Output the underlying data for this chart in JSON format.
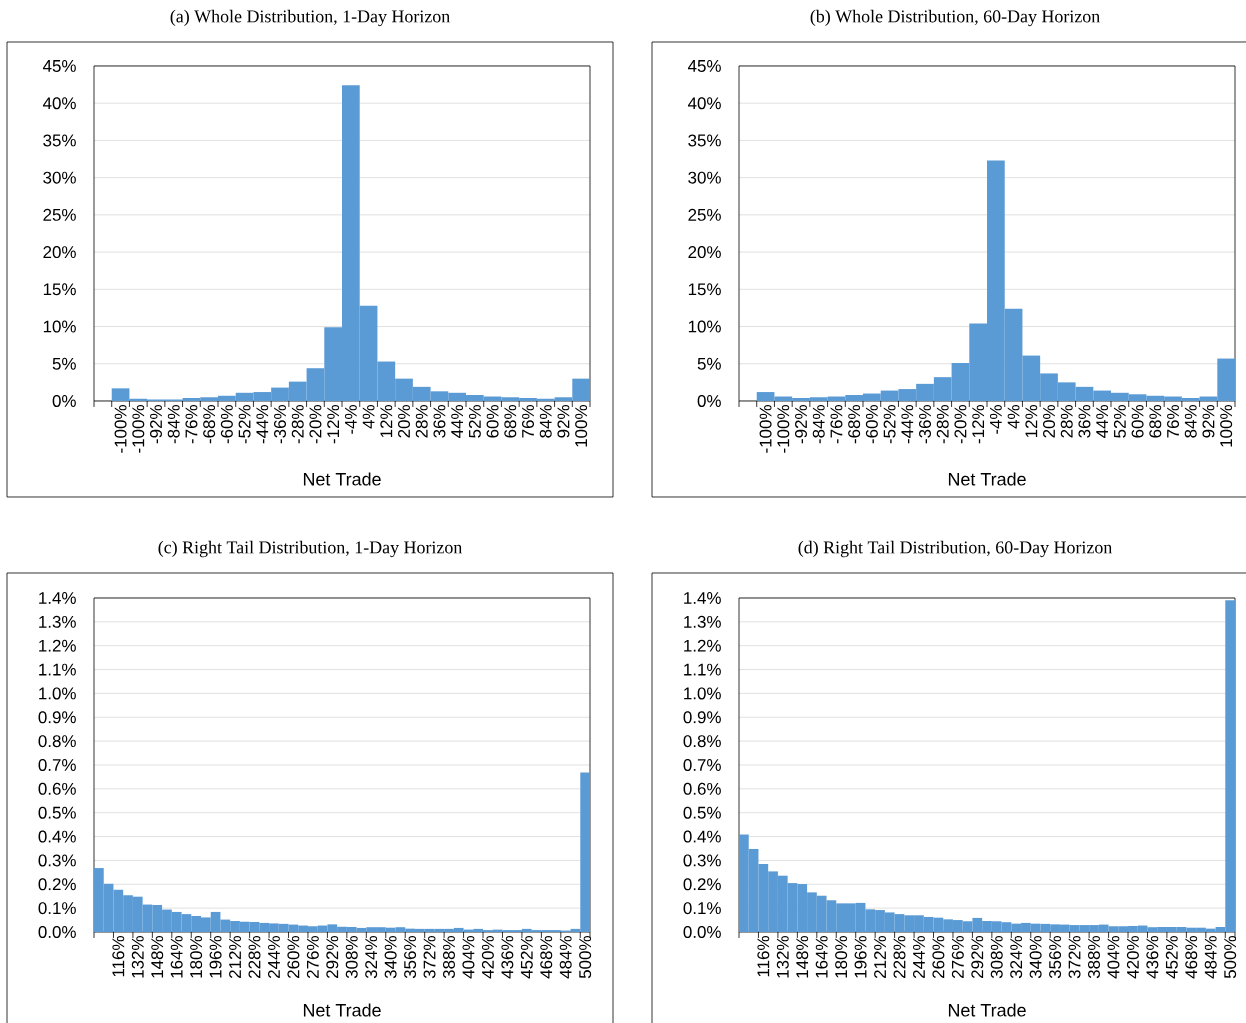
{
  "chart_data": [
    {
      "type": "bar",
      "title": "(a) Whole Distribution, 1-Day Horizon",
      "xlabel": "Net Trade",
      "color": "#5b9bd5",
      "grid": "y",
      "categories": [
        null,
        "-100%",
        "-100%",
        "-92%",
        "-84%",
        "-76%",
        "-68%",
        "-60%",
        "-52%",
        "-44%",
        "-36%",
        "-28%",
        "-20%",
        "-12%",
        "-4%",
        "4%",
        "12%",
        "20%",
        "28%",
        "36%",
        "44%",
        "52%",
        "60%",
        "68%",
        "76%",
        "84%",
        "92%",
        "100%"
      ],
      "values": [
        0,
        1.7,
        0.3,
        0.2,
        0.2,
        0.4,
        0.5,
        0.7,
        1.1,
        1.2,
        1.8,
        2.6,
        4.4,
        9.9,
        42.4,
        12.8,
        5.3,
        3.0,
        1.9,
        1.3,
        1.1,
        0.8,
        0.6,
        0.5,
        0.4,
        0.3,
        0.5,
        3.0
      ],
      "ylim": [
        0,
        45
      ],
      "yticks": [
        {
          "value": 0,
          "label": "0%"
        },
        {
          "value": 5,
          "label": "5%"
        },
        {
          "value": 10,
          "label": "10%"
        },
        {
          "value": 15,
          "label": "15%"
        },
        {
          "value": 20,
          "label": "20%"
        },
        {
          "value": 25,
          "label": "25%"
        },
        {
          "value": 30,
          "label": "30%"
        },
        {
          "value": 35,
          "label": "35%"
        },
        {
          "value": 40,
          "label": "40%"
        },
        {
          "value": 45,
          "label": "45%"
        }
      ]
    },
    {
      "type": "bar",
      "title": "(b) Whole Distribution, 60-Day Horizon",
      "xlabel": "Net Trade",
      "color": "#5b9bd5",
      "grid": "y",
      "categories": [
        null,
        "-100%",
        "-100%",
        "-92%",
        "-84%",
        "-76%",
        "-68%",
        "-60%",
        "-52%",
        "-44%",
        "-36%",
        "-28%",
        "-20%",
        "-12%",
        "-4%",
        "4%",
        "12%",
        "20%",
        "28%",
        "36%",
        "44%",
        "52%",
        "60%",
        "68%",
        "76%",
        "84%",
        "92%",
        "100%"
      ],
      "values": [
        0,
        1.2,
        0.6,
        0.4,
        0.5,
        0.6,
        0.8,
        1.0,
        1.4,
        1.6,
        2.3,
        3.2,
        5.1,
        10.4,
        32.3,
        12.4,
        6.1,
        3.7,
        2.5,
        1.9,
        1.4,
        1.1,
        0.9,
        0.7,
        0.6,
        0.4,
        0.6,
        5.7
      ],
      "ylim": [
        0,
        45
      ],
      "yticks": [
        {
          "value": 0,
          "label": "0%"
        },
        {
          "value": 5,
          "label": "5%"
        },
        {
          "value": 10,
          "label": "10%"
        },
        {
          "value": 15,
          "label": "15%"
        },
        {
          "value": 20,
          "label": "20%"
        },
        {
          "value": 25,
          "label": "25%"
        },
        {
          "value": 30,
          "label": "30%"
        },
        {
          "value": 35,
          "label": "35%"
        },
        {
          "value": 40,
          "label": "40%"
        },
        {
          "value": 45,
          "label": "45%"
        }
      ]
    },
    {
      "type": "bar",
      "title": "(c) Right Tail Distribution, 1-Day Horizon",
      "xlabel": "Net Trade",
      "color": "#5b9bd5",
      "grid": "y",
      "categories": [
        null,
        null,
        "116%",
        null,
        "132%",
        null,
        "148%",
        null,
        "164%",
        null,
        "180%",
        null,
        "196%",
        null,
        "212%",
        null,
        "228%",
        null,
        "244%",
        null,
        "260%",
        null,
        "276%",
        null,
        "292%",
        null,
        "308%",
        null,
        "324%",
        null,
        "340%",
        null,
        "356%",
        null,
        "372%",
        null,
        "388%",
        null,
        "404%",
        null,
        "420%",
        null,
        "436%",
        null,
        "452%",
        null,
        "468%",
        null,
        "484%",
        null,
        "500%"
      ],
      "values": [
        0.268,
        0.202,
        0.177,
        0.154,
        0.148,
        0.115,
        0.113,
        0.094,
        0.084,
        0.075,
        0.067,
        0.061,
        0.084,
        0.052,
        0.046,
        0.043,
        0.042,
        0.038,
        0.036,
        0.034,
        0.031,
        0.027,
        0.024,
        0.027,
        0.032,
        0.022,
        0.021,
        0.017,
        0.02,
        0.02,
        0.018,
        0.02,
        0.014,
        0.013,
        0.013,
        0.013,
        0.013,
        0.017,
        0.01,
        0.013,
        0.008,
        0.01,
        0.008,
        0.008,
        0.013,
        0.008,
        0.008,
        0.008,
        0.006,
        0.013,
        0.669
      ],
      "ylim": [
        0,
        1.4
      ],
      "yticks": [
        {
          "value": 0,
          "label": "0.0%"
        },
        {
          "value": 0.1,
          "label": "0.1%"
        },
        {
          "value": 0.2,
          "label": "0.2%"
        },
        {
          "value": 0.3,
          "label": "0.3%"
        },
        {
          "value": 0.4,
          "label": "0.4%"
        },
        {
          "value": 0.5,
          "label": "0.5%"
        },
        {
          "value": 0.6,
          "label": "0.6%"
        },
        {
          "value": 0.7,
          "label": "0.7%"
        },
        {
          "value": 0.8,
          "label": "0.8%"
        },
        {
          "value": 0.9,
          "label": "0.9%"
        },
        {
          "value": 1.0,
          "label": "1.0%"
        },
        {
          "value": 1.1,
          "label": "1.1%"
        },
        {
          "value": 1.2,
          "label": "1.2%"
        },
        {
          "value": 1.3,
          "label": "1.3%"
        },
        {
          "value": 1.4,
          "label": "1.4%"
        }
      ]
    },
    {
      "type": "bar",
      "title": "(d) Right Tail Distribution, 60-Day Horizon",
      "xlabel": "Net Trade",
      "color": "#5b9bd5",
      "grid": "y",
      "categories": [
        null,
        null,
        "116%",
        null,
        "132%",
        null,
        "148%",
        null,
        "164%",
        null,
        "180%",
        null,
        "196%",
        null,
        "212%",
        null,
        "228%",
        null,
        "244%",
        null,
        "260%",
        null,
        "276%",
        null,
        "292%",
        null,
        "308%",
        null,
        "324%",
        null,
        "340%",
        null,
        "356%",
        null,
        "372%",
        null,
        "388%",
        null,
        "404%",
        null,
        "420%",
        null,
        "436%",
        null,
        "452%",
        null,
        "468%",
        null,
        "484%",
        null,
        "500%"
      ],
      "values": [
        0.409,
        0.348,
        0.285,
        0.254,
        0.236,
        0.205,
        0.201,
        0.166,
        0.152,
        0.133,
        0.12,
        0.12,
        0.122,
        0.095,
        0.092,
        0.082,
        0.075,
        0.07,
        0.07,
        0.063,
        0.06,
        0.053,
        0.05,
        0.045,
        0.059,
        0.046,
        0.045,
        0.041,
        0.035,
        0.038,
        0.035,
        0.034,
        0.032,
        0.031,
        0.029,
        0.029,
        0.029,
        0.031,
        0.024,
        0.024,
        0.025,
        0.027,
        0.02,
        0.021,
        0.021,
        0.021,
        0.018,
        0.018,
        0.014,
        0.021,
        1.39
      ],
      "ylim": [
        0,
        1.4
      ],
      "yticks": [
        {
          "value": 0,
          "label": "0.0%"
        },
        {
          "value": 0.1,
          "label": "0.1%"
        },
        {
          "value": 0.2,
          "label": "0.2%"
        },
        {
          "value": 0.3,
          "label": "0.3%"
        },
        {
          "value": 0.4,
          "label": "0.4%"
        },
        {
          "value": 0.5,
          "label": "0.5%"
        },
        {
          "value": 0.6,
          "label": "0.6%"
        },
        {
          "value": 0.7,
          "label": "0.7%"
        },
        {
          "value": 0.8,
          "label": "0.8%"
        },
        {
          "value": 0.9,
          "label": "0.9%"
        },
        {
          "value": 1.0,
          "label": "1.0%"
        },
        {
          "value": 1.1,
          "label": "1.1%"
        },
        {
          "value": 1.2,
          "label": "1.2%"
        },
        {
          "value": 1.3,
          "label": "1.3%"
        },
        {
          "value": 1.4,
          "label": "1.4%"
        }
      ]
    }
  ]
}
